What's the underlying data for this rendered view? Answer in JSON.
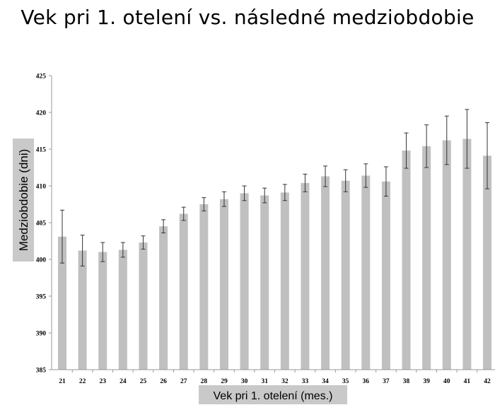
{
  "chart_data": {
    "type": "bar",
    "title": "Vek pri 1. otelení vs. následné medziobdobie",
    "xlabel": "Vek pri 1. otelení (mes.)",
    "ylabel": "Medziobdobie (dni)",
    "ylim": [
      385,
      425
    ],
    "yticks": [
      385,
      390,
      395,
      400,
      405,
      410,
      415,
      420,
      425
    ],
    "categories": [
      "21",
      "22",
      "23",
      "24",
      "25",
      "26",
      "27",
      "28",
      "29",
      "30",
      "31",
      "32",
      "33",
      "34",
      "35",
      "36",
      "37",
      "38",
      "39",
      "40",
      "41",
      "42"
    ],
    "values": [
      403.1,
      401.2,
      401.0,
      401.3,
      402.3,
      404.5,
      406.2,
      407.5,
      408.2,
      409.0,
      408.7,
      409.1,
      410.4,
      411.3,
      410.7,
      411.4,
      410.6,
      414.8,
      415.4,
      416.2,
      416.4,
      414.1
    ],
    "errors": [
      3.6,
      2.1,
      1.3,
      1.0,
      0.9,
      0.9,
      0.9,
      0.9,
      1.0,
      1.0,
      1.0,
      1.1,
      1.2,
      1.4,
      1.5,
      1.6,
      2.0,
      2.4,
      2.9,
      3.3,
      4.0,
      4.5
    ],
    "grid": false,
    "colors": {
      "bar": "#c0c0c0",
      "error_bar": "#333333",
      "axis": "#999999",
      "label_box": "#c9c9c9"
    }
  }
}
